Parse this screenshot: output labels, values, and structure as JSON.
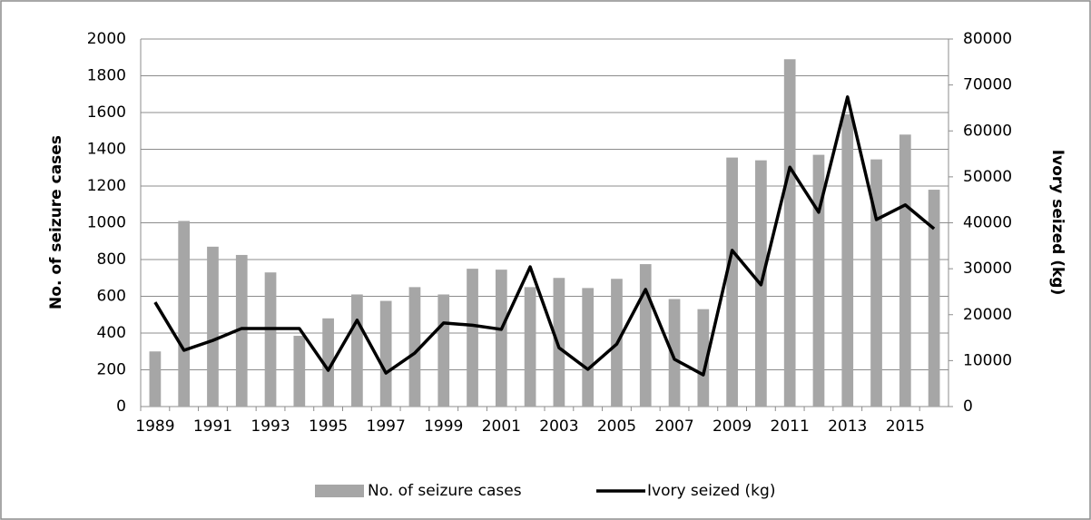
{
  "chart_data": {
    "type": "bar-line",
    "categories": [
      "1989",
      null,
      "1991",
      null,
      "1993",
      null,
      "1995",
      null,
      "1997",
      null,
      "1999",
      null,
      "2001",
      null,
      "2003",
      null,
      "2005",
      null,
      "2007",
      null,
      "2009",
      null,
      "2011",
      null,
      "2013",
      null,
      "2015",
      null
    ],
    "y_label": "No. of seizure cases",
    "y2_label": "Ivory seized (kg)",
    "series": [
      {
        "name": "No. of seizure cases",
        "type": "bar",
        "color": "#a6a6a6",
        "values": [
          300,
          1010,
          870,
          825,
          730,
          385,
          480,
          610,
          575,
          650,
          610,
          750,
          745,
          650,
          700,
          645,
          695,
          775,
          585,
          530,
          1355,
          1340,
          1890,
          1370,
          1590,
          1345,
          1480,
          1180
        ]
      },
      {
        "name": "Ivory seized (kg)",
        "type": "line",
        "axis": "y2",
        "color": "#000000",
        "values": [
          22700,
          12250,
          14400,
          17000,
          17000,
          17000,
          7900,
          18800,
          7300,
          11650,
          18200,
          17700,
          16800,
          30400,
          12800,
          8100,
          13600,
          25500,
          10300,
          6900,
          34000,
          26500,
          52100,
          42300,
          67400,
          40700,
          43900,
          38700
        ]
      }
    ],
    "ylim": [
      0,
      2000
    ],
    "yticks": [
      0,
      200,
      400,
      600,
      800,
      1000,
      1200,
      1400,
      1600,
      1800,
      2000
    ],
    "y2lim": [
      0,
      80000
    ],
    "y2ticks": [
      0,
      10000,
      20000,
      30000,
      40000,
      50000,
      60000,
      70000,
      80000
    ],
    "grid": true,
    "legend": "bottom"
  }
}
